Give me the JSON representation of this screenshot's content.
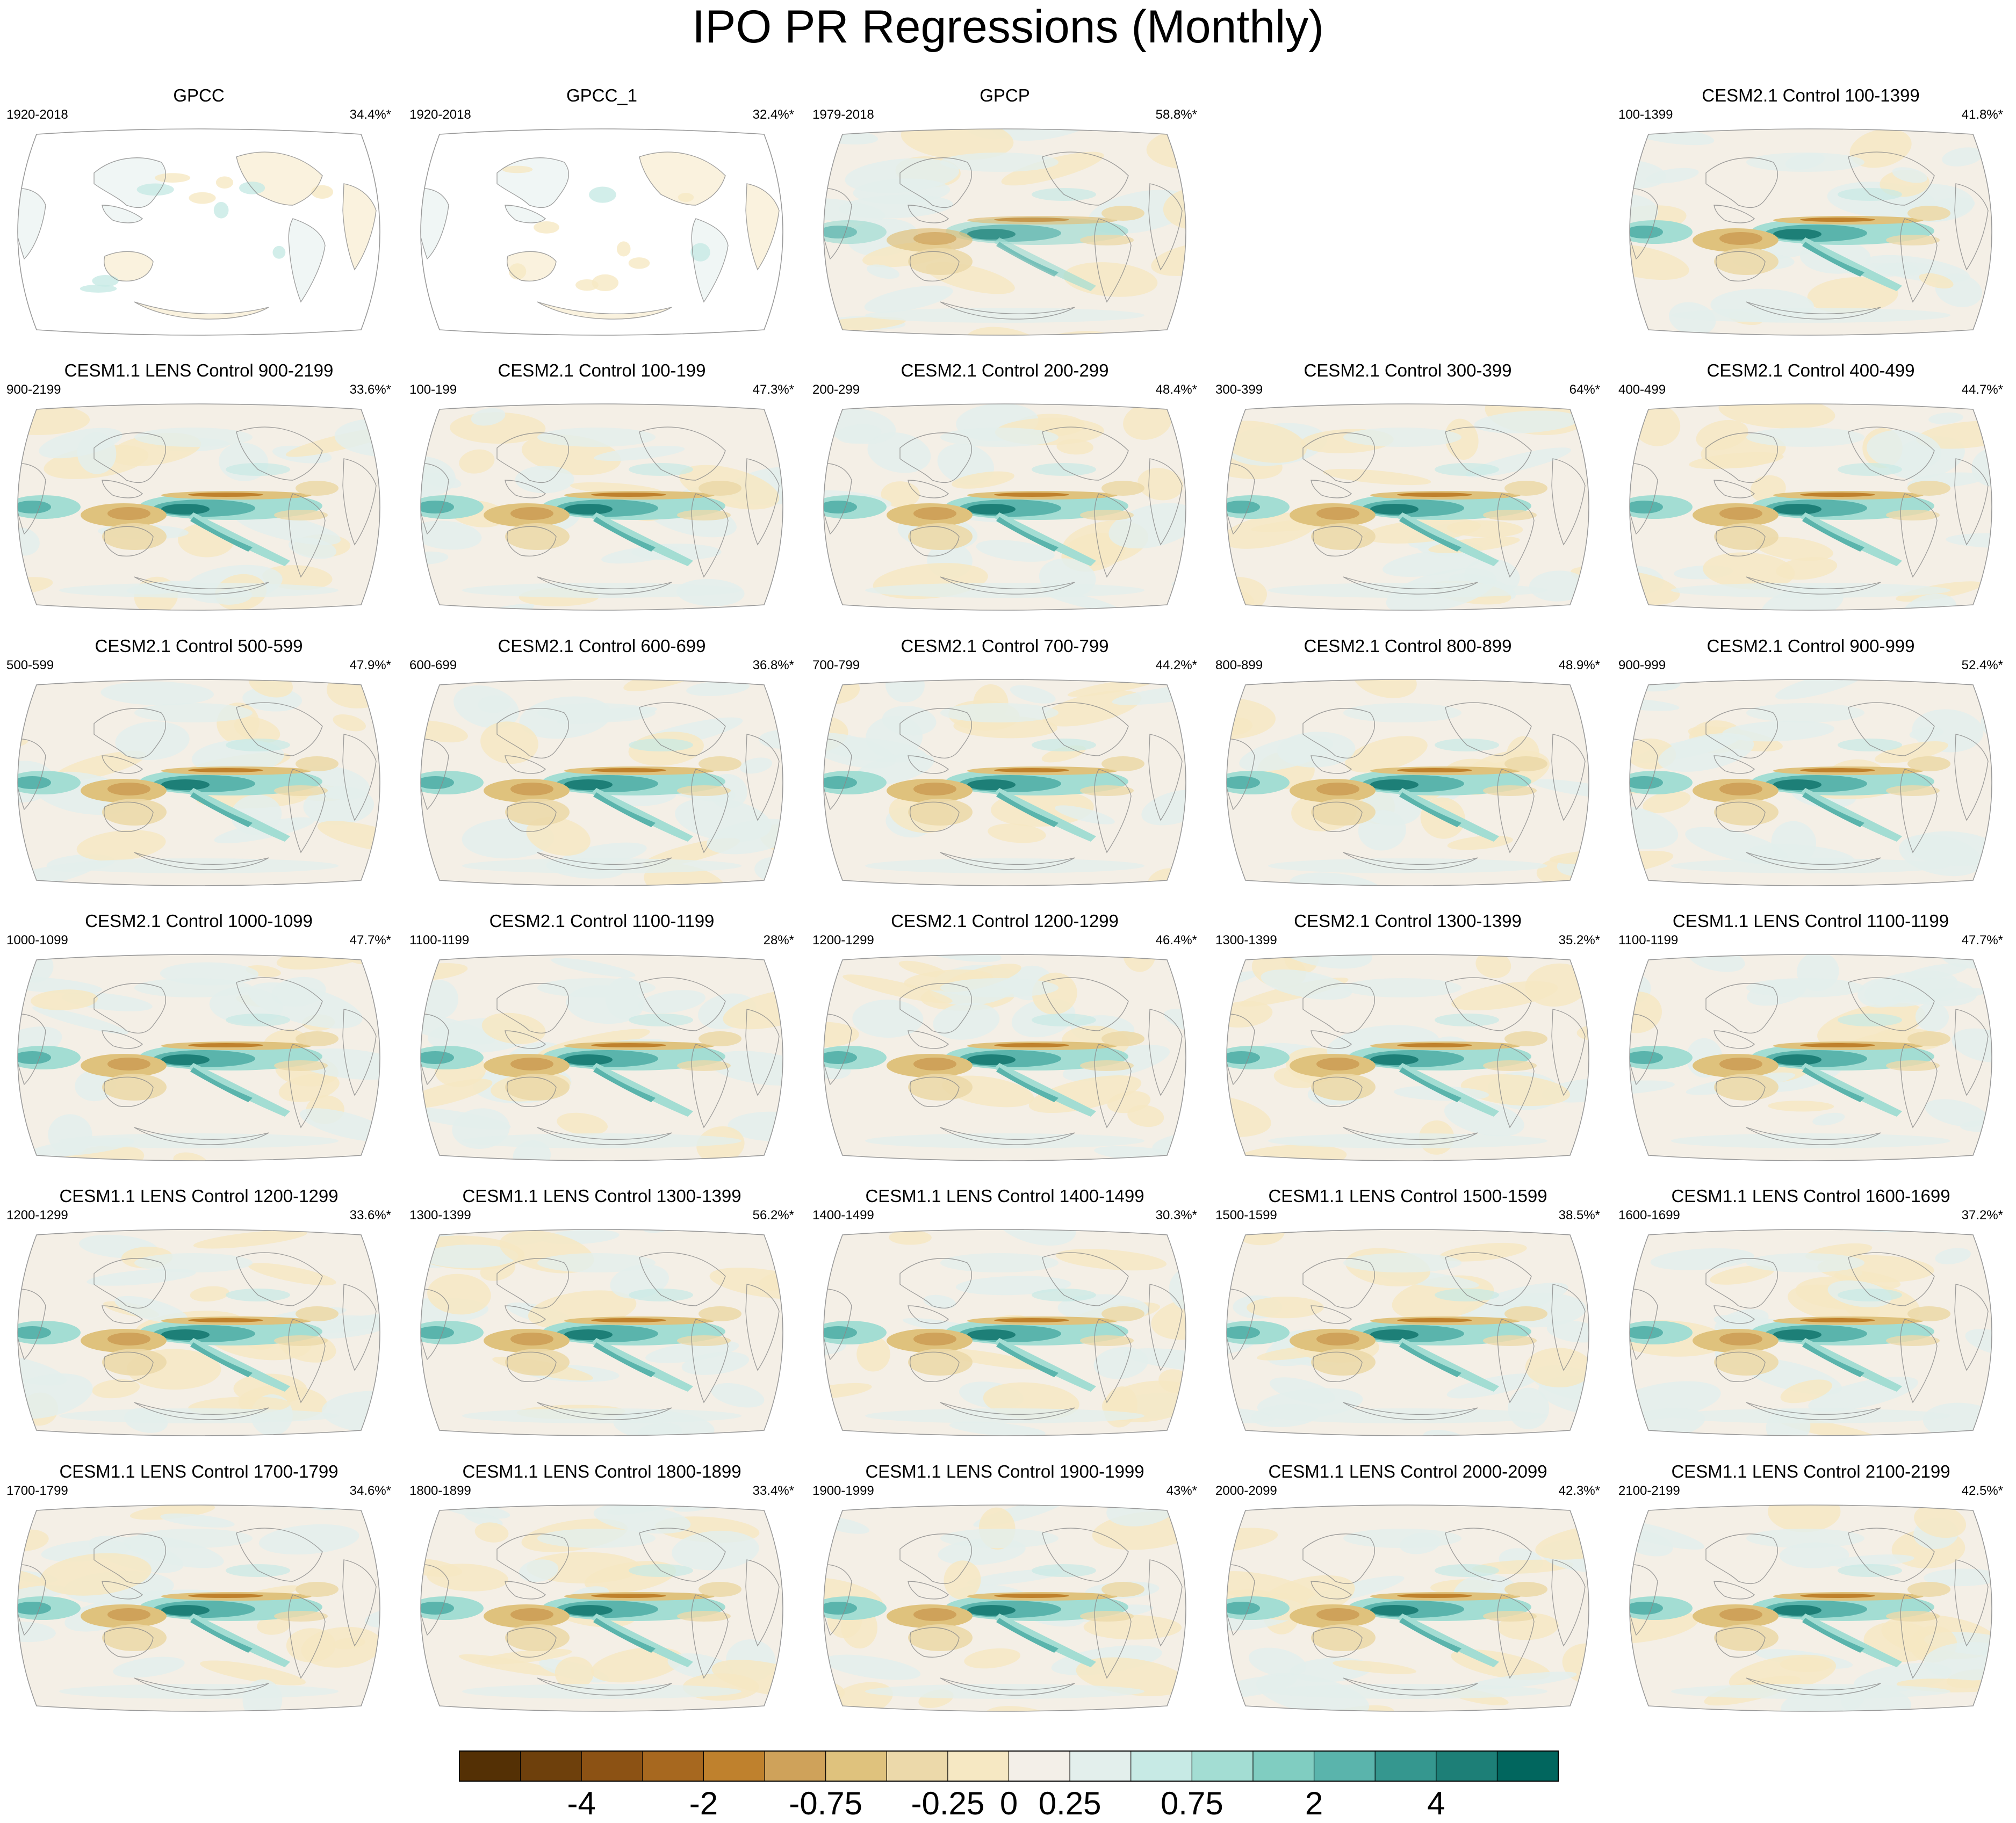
{
  "title": "IPO PR Regressions (Monthly)",
  "colors": {
    "land_edge": "#8a8a8a",
    "neutral": "#f4efe6",
    "scale": [
      "#543005",
      "#6e400c",
      "#8c5214",
      "#a7681f",
      "#bf812d",
      "#cfa25a",
      "#dfc27d",
      "#ecd9aa",
      "#f6e8c3",
      "#f3efe8",
      "#e3efec",
      "#c7eae5",
      "#a3ddd3",
      "#80cdc1",
      "#5ab4ac",
      "#35978f",
      "#1d7f77",
      "#01665e",
      "#014c43",
      "#003c30"
    ]
  },
  "panels": [
    {
      "title": "GPCC",
      "period": "1920-2018",
      "variance": "34.4%*",
      "style": "obs-land"
    },
    {
      "title": "GPCC_1",
      "period": "1920-2018",
      "variance": "32.4%*",
      "style": "obs-land"
    },
    {
      "title": "GPCP",
      "period": "1979-2018",
      "variance": "58.8%*",
      "style": "obs-full"
    },
    null,
    {
      "title": "CESM2.1 Control 100-1399",
      "period": "100-1399",
      "variance": "41.8%*",
      "style": "model"
    },
    {
      "title": "CESM1.1 LENS Control 900-2199",
      "period": "900-2199",
      "variance": "33.6%*",
      "style": "model"
    },
    {
      "title": "CESM2.1 Control 100-199",
      "period": "100-199",
      "variance": "47.3%*",
      "style": "model"
    },
    {
      "title": "CESM2.1 Control 200-299",
      "period": "200-299",
      "variance": "48.4%*",
      "style": "model"
    },
    {
      "title": "CESM2.1 Control 300-399",
      "period": "300-399",
      "variance": "64%*",
      "style": "model"
    },
    {
      "title": "CESM2.1 Control 400-499",
      "period": "400-499",
      "variance": "44.7%*",
      "style": "model"
    },
    {
      "title": "CESM2.1 Control 500-599",
      "period": "500-599",
      "variance": "47.9%*",
      "style": "model"
    },
    {
      "title": "CESM2.1 Control 600-699",
      "period": "600-699",
      "variance": "36.8%*",
      "style": "model"
    },
    {
      "title": "CESM2.1 Control 700-799",
      "period": "700-799",
      "variance": "44.2%*",
      "style": "model"
    },
    {
      "title": "CESM2.1 Control 800-899",
      "period": "800-899",
      "variance": "48.9%*",
      "style": "model"
    },
    {
      "title": "CESM2.1 Control 900-999",
      "period": "900-999",
      "variance": "52.4%*",
      "style": "model"
    },
    {
      "title": "CESM2.1 Control 1000-1099",
      "period": "1000-1099",
      "variance": "47.7%*",
      "style": "model"
    },
    {
      "title": "CESM2.1 Control 1100-1199",
      "period": "1100-1199",
      "variance": "28%*",
      "style": "model"
    },
    {
      "title": "CESM2.1 Control 1200-1299",
      "period": "1200-1299",
      "variance": "46.4%*",
      "style": "model"
    },
    {
      "title": "CESM2.1 Control 1300-1399",
      "period": "1300-1399",
      "variance": "35.2%*",
      "style": "model"
    },
    {
      "title": "CESM1.1 LENS Control 1100-1199",
      "period": "1100-1199",
      "variance": "47.7%*",
      "style": "model"
    },
    {
      "title": "CESM1.1 LENS Control 1200-1299",
      "period": "1200-1299",
      "variance": "33.6%*",
      "style": "model"
    },
    {
      "title": "CESM1.1 LENS Control 1300-1399",
      "period": "1300-1399",
      "variance": "56.2%*",
      "style": "model"
    },
    {
      "title": "CESM1.1 LENS Control 1400-1499",
      "period": "1400-1499",
      "variance": "30.3%*",
      "style": "model"
    },
    {
      "title": "CESM1.1 LENS Control 1500-1599",
      "period": "1500-1599",
      "variance": "38.5%*",
      "style": "model"
    },
    {
      "title": "CESM1.1 LENS Control 1600-1699",
      "period": "1600-1699",
      "variance": "37.2%*",
      "style": "model"
    },
    {
      "title": "CESM1.1 LENS Control 1700-1799",
      "period": "1700-1799",
      "variance": "34.6%*",
      "style": "model"
    },
    {
      "title": "CESM1.1 LENS Control 1800-1899",
      "period": "1800-1899",
      "variance": "33.4%*",
      "style": "model"
    },
    {
      "title": "CESM1.1 LENS Control 1900-1999",
      "period": "1900-1999",
      "variance": "43%*",
      "style": "model"
    },
    {
      "title": "CESM1.1 LENS Control 2000-2099",
      "period": "2000-2099",
      "variance": "42.3%*",
      "style": "model"
    },
    {
      "title": "CESM1.1 LENS Control 2100-2199",
      "period": "2100-2199",
      "variance": "42.5%*",
      "style": "model"
    }
  ],
  "chart_data": {
    "type": "heatmap",
    "title": "IPO PR Regressions (Monthly)",
    "layout": "6 rows x 5 columns of Robinson-projection global maps, Pacific-centered",
    "colorbar": {
      "orientation": "horizontal",
      "position": "bottom",
      "levels": [
        -5,
        -4,
        -3,
        -2,
        -1,
        -0.75,
        -0.5,
        -0.25,
        0,
        0.25,
        0.5,
        0.75,
        1,
        2,
        3,
        4,
        5
      ],
      "tick_labels": [
        "-4",
        "-2",
        "-0.75",
        "-0.25",
        "0",
        "0.25",
        "0.75",
        "2",
        "4"
      ],
      "tick_values": [
        -4,
        -2,
        -0.75,
        -0.25,
        0,
        0.25,
        0.75,
        2,
        4
      ]
    },
    "colormap": "brown (negative) to teal (positive)"
  }
}
